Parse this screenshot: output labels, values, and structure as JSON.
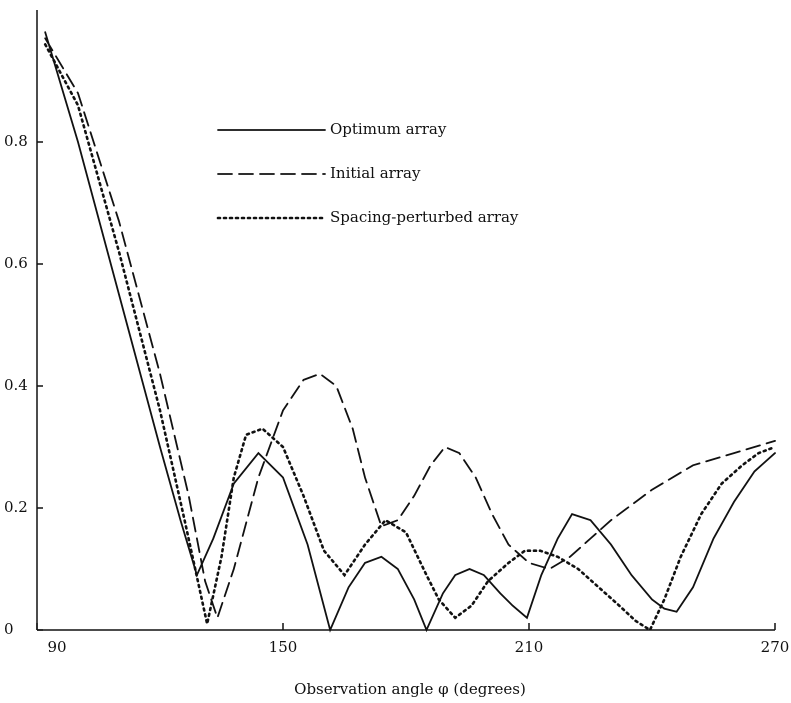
{
  "chart_data": {
    "type": "line",
    "x_label": "Observation angle φ (degrees)",
    "xlim": [
      90,
      270
    ],
    "xticks": [
      90,
      150,
      210,
      270
    ],
    "ylim": [
      0,
      1
    ],
    "yticks": [
      0,
      0.2,
      0.4,
      0.6,
      0.8
    ],
    "series": [
      {
        "name": "Optimum array",
        "color": "#111111",
        "style": "solid",
        "x": [
          92,
          100,
          110,
          120,
          125,
          129,
          133,
          138,
          144,
          150,
          156,
          161.5,
          166,
          170,
          174,
          178,
          182,
          185,
          189,
          192,
          195.5,
          199,
          203,
          206,
          209.5,
          213,
          217,
          220.5,
          225,
          230,
          235,
          240,
          243,
          246,
          250,
          255,
          260,
          265,
          270
        ],
        "values": [
          0.98,
          0.8,
          0.55,
          0.3,
          0.18,
          0.09,
          0.15,
          0.24,
          0.29,
          0.25,
          0.14,
          0.0,
          0.07,
          0.11,
          0.12,
          0.1,
          0.05,
          0.0,
          0.06,
          0.09,
          0.1,
          0.09,
          0.06,
          0.04,
          0.02,
          0.09,
          0.15,
          0.19,
          0.18,
          0.14,
          0.09,
          0.05,
          0.035,
          0.03,
          0.07,
          0.15,
          0.21,
          0.26,
          0.29
        ]
      },
      {
        "name": "Initial array",
        "color": "#111111",
        "style": "dashed",
        "x": [
          92,
          100,
          110,
          120,
          127,
          131,
          134,
          138,
          144,
          150,
          155,
          159,
          163,
          167,
          170,
          174,
          178,
          182,
          186,
          189.5,
          193,
          197,
          201,
          205,
          210,
          215,
          220,
          225,
          230,
          240,
          250,
          260,
          270
        ],
        "values": [
          0.97,
          0.88,
          0.67,
          0.42,
          0.22,
          0.08,
          0.02,
          0.1,
          0.25,
          0.36,
          0.41,
          0.42,
          0.4,
          0.33,
          0.25,
          0.17,
          0.18,
          0.22,
          0.27,
          0.3,
          0.29,
          0.25,
          0.19,
          0.14,
          0.11,
          0.1,
          0.12,
          0.15,
          0.18,
          0.23,
          0.27,
          0.29,
          0.31
        ]
      },
      {
        "name": "Spacing-perturbed array",
        "color": "#111111",
        "style": "dotted",
        "x": [
          92,
          100,
          110,
          120,
          126,
          131.5,
          135,
          138,
          141,
          145,
          150,
          155,
          160,
          165,
          170,
          175,
          180,
          185,
          188,
          192,
          196,
          200,
          205,
          209,
          212.7,
          217,
          222,
          227,
          232,
          236,
          239.5,
          243,
          247,
          252,
          257,
          262,
          266,
          270
        ],
        "values": [
          0.96,
          0.86,
          0.62,
          0.36,
          0.18,
          0.01,
          0.12,
          0.25,
          0.32,
          0.33,
          0.3,
          0.22,
          0.13,
          0.09,
          0.14,
          0.18,
          0.16,
          0.09,
          0.05,
          0.02,
          0.04,
          0.08,
          0.11,
          0.13,
          0.13,
          0.12,
          0.1,
          0.07,
          0.04,
          0.015,
          0.0,
          0.05,
          0.12,
          0.19,
          0.24,
          0.27,
          0.29,
          0.3
        ]
      }
    ]
  }
}
